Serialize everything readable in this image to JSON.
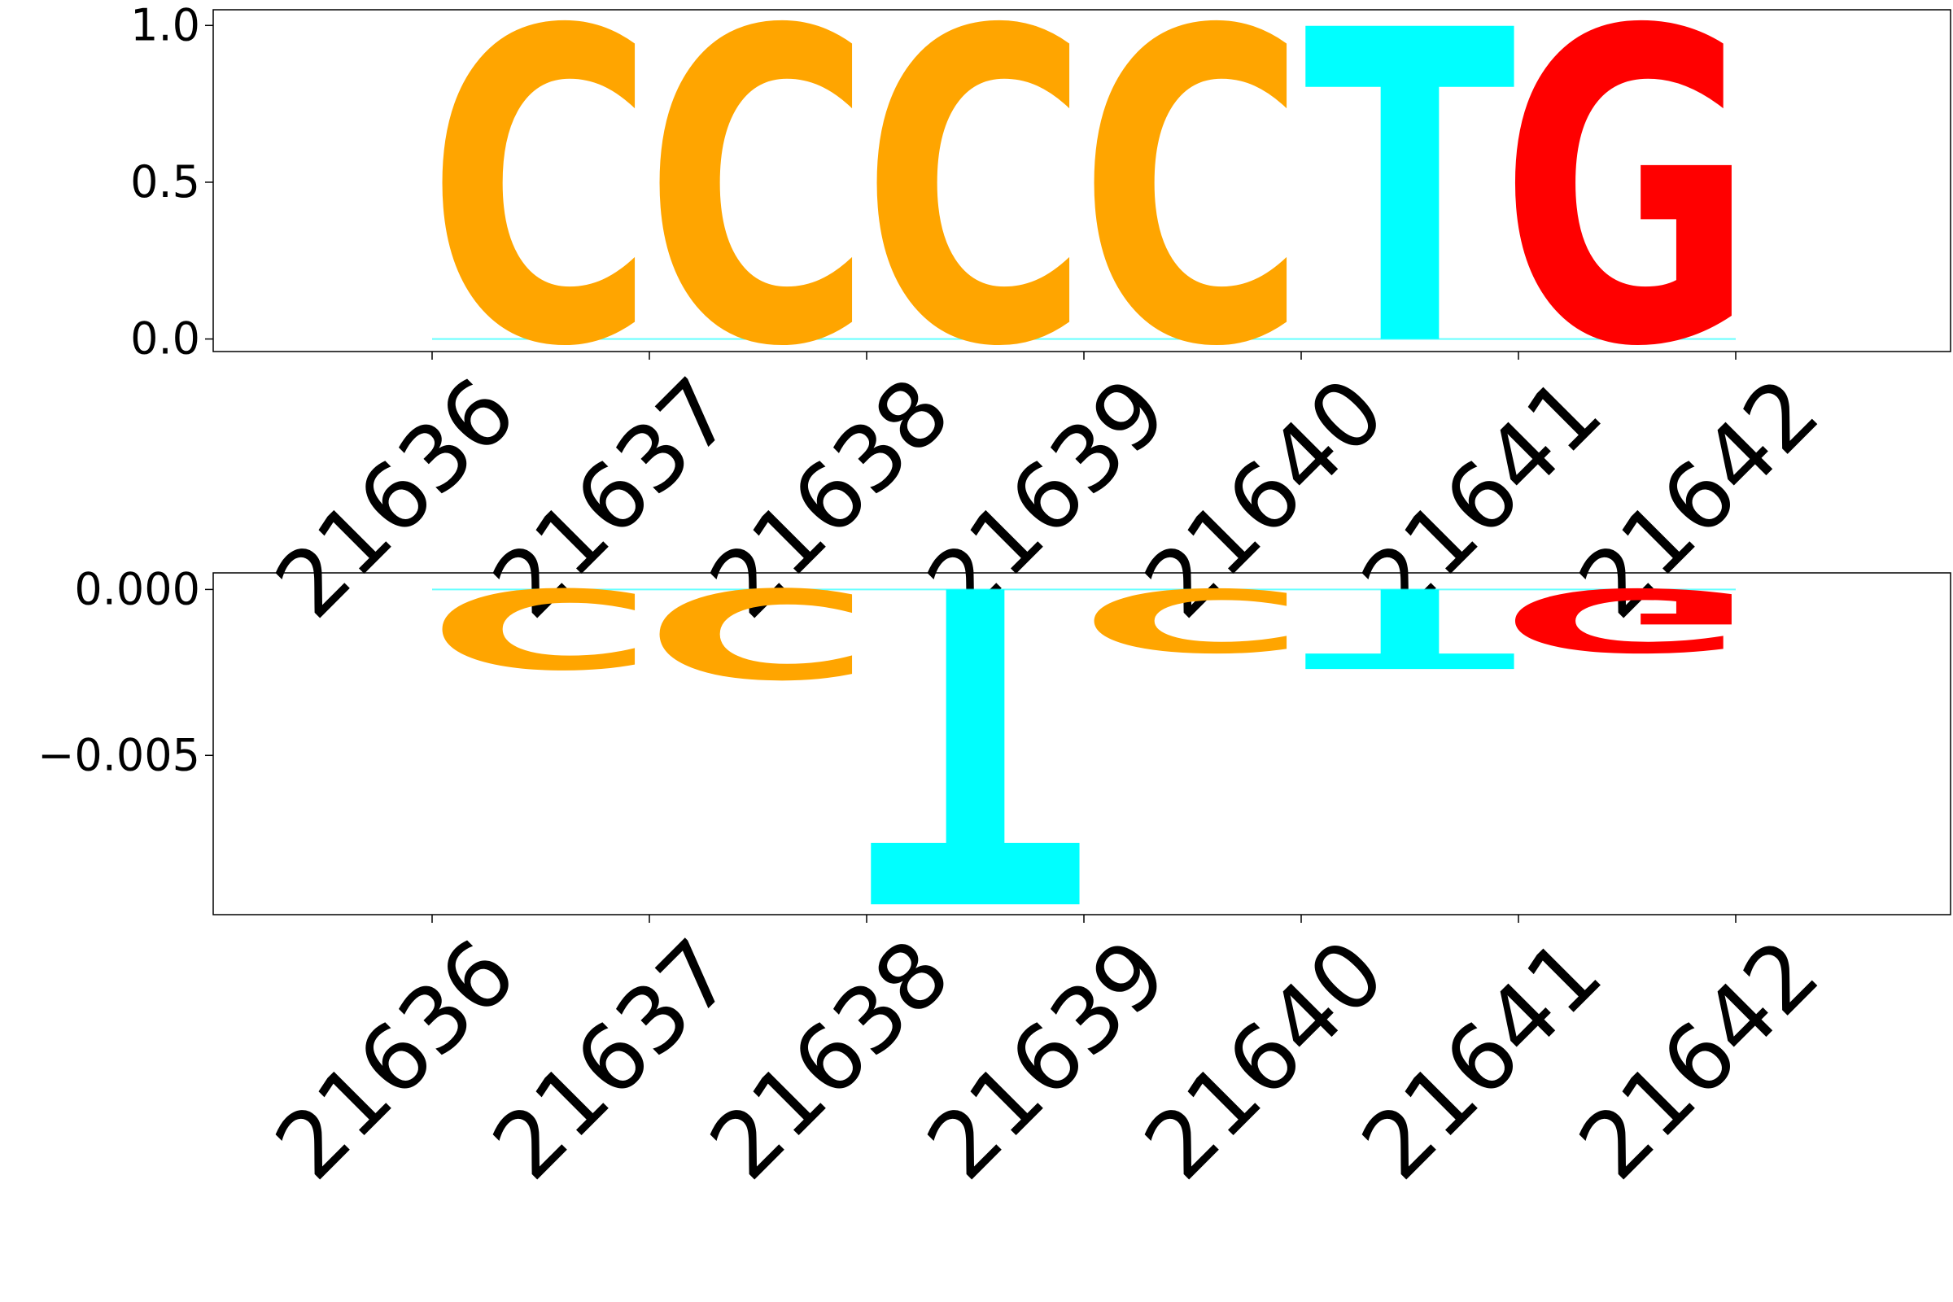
{
  "chart_data": [
    {
      "type": "sequence-logo",
      "title": "",
      "xlabel": "",
      "ylabel": "",
      "categories": [
        "21636",
        "21637",
        "21638",
        "21639",
        "21640",
        "21641",
        "21642"
      ],
      "ylim": [
        -0.04,
        1.05
      ],
      "yticks": [
        0.0,
        0.5,
        1.0
      ],
      "ytick_labels": [
        "0.0",
        "0.5",
        "1.0"
      ],
      "letters": [
        {
          "position": "21636",
          "base": "C",
          "value": 1.0
        },
        {
          "position": "21637",
          "base": "C",
          "value": 1.0
        },
        {
          "position": "21638",
          "base": "C",
          "value": 1.0
        },
        {
          "position": "21639",
          "base": "C",
          "value": 1.0
        },
        {
          "position": "21640",
          "base": "T",
          "value": 1.0
        },
        {
          "position": "21641",
          "base": "G",
          "value": 1.0
        }
      ]
    },
    {
      "type": "sequence-logo",
      "title": "",
      "xlabel": "",
      "ylabel": "",
      "categories": [
        "21636",
        "21637",
        "21638",
        "21639",
        "21640",
        "21641",
        "21642"
      ],
      "ylim": [
        -0.0098,
        0.0005
      ],
      "yticks": [
        0.0,
        -0.005
      ],
      "ytick_labels": [
        "0.000",
        "−0.005"
      ],
      "letters": [
        {
          "position": "21636",
          "base": "C",
          "value": -0.0024
        },
        {
          "position": "21637",
          "base": "C",
          "value": -0.0027
        },
        {
          "position": "21638",
          "base": "T",
          "value": -0.0095
        },
        {
          "position": "21639",
          "base": "C",
          "value": -0.0019
        },
        {
          "position": "21640",
          "base": "T",
          "value": -0.0024
        },
        {
          "position": "21641",
          "base": "G",
          "value": -0.0019
        }
      ]
    }
  ],
  "colors": {
    "A": "#32cd32",
    "C": "#ffa500",
    "G": "#ff0000",
    "T": "#00ffff",
    "axis": "#000000",
    "background": "#ffffff"
  }
}
